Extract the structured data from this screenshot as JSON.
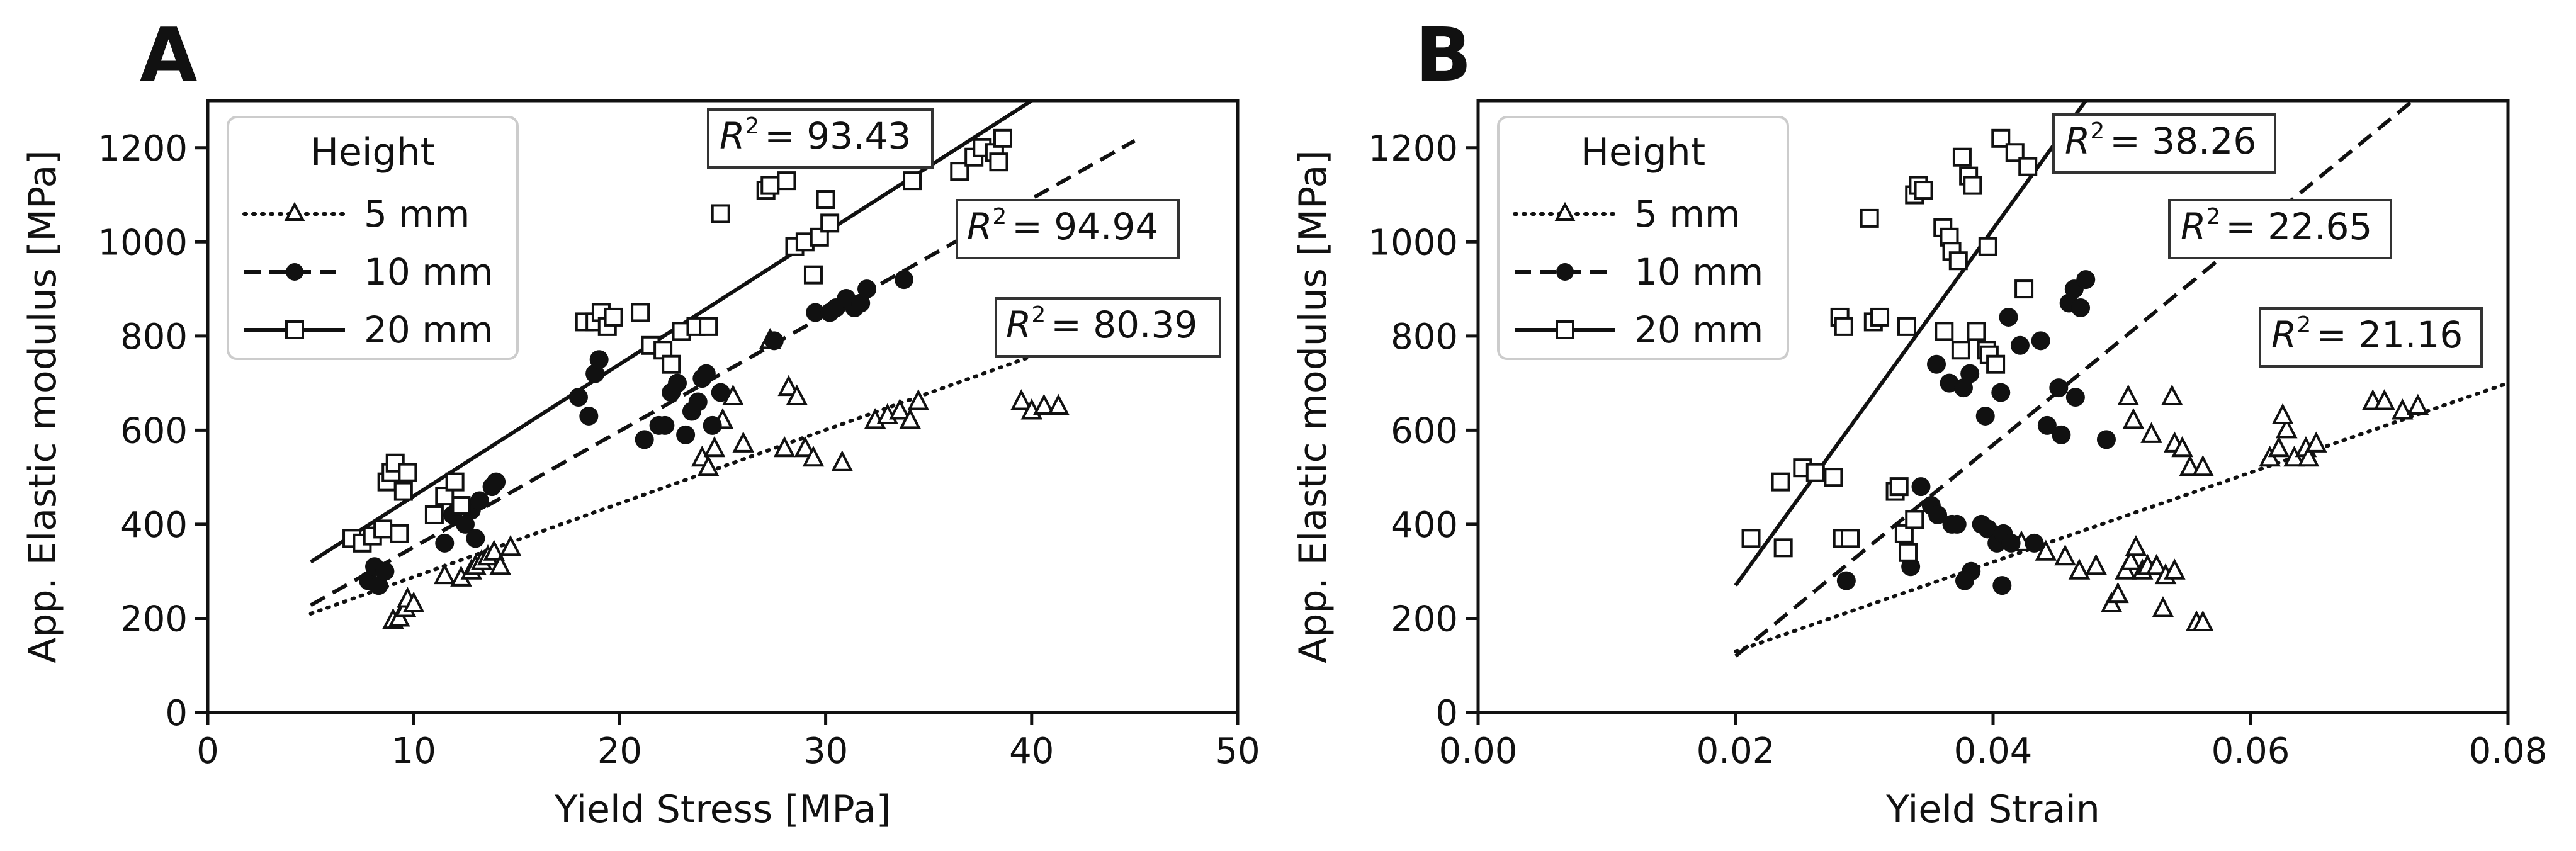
{
  "chart_data": [
    {
      "type": "scatter",
      "panel_label": "A",
      "xlabel": "Yield Stress [MPa]",
      "ylabel": "App. Elastic modulus [MPa]",
      "xlim": [
        0,
        50
      ],
      "ylim": [
        0,
        1300
      ],
      "xticks": [
        0,
        10,
        20,
        30,
        40,
        50
      ],
      "yticks": [
        0,
        200,
        400,
        600,
        800,
        1000,
        1200
      ],
      "grid": false,
      "legend": {
        "title": "Height",
        "position": "top-left",
        "entries": [
          {
            "label": "5 mm",
            "line": "dotted",
            "marker": "triangle-open"
          },
          {
            "label": "10 mm",
            "line": "dashed",
            "marker": "circle-filled"
          },
          {
            "label": "20 mm",
            "line": "solid",
            "marker": "square-open"
          }
        ]
      },
      "series": [
        {
          "name": "5 mm",
          "marker": "triangle-open",
          "points": [
            [
              9,
              195
            ],
            [
              9.3,
              200
            ],
            [
              9.6,
              220
            ],
            [
              9.7,
              240
            ],
            [
              10,
              230
            ],
            [
              11.5,
              290
            ],
            [
              12.3,
              285
            ],
            [
              12.8,
              300
            ],
            [
              13,
              310
            ],
            [
              13.3,
              320
            ],
            [
              13.6,
              330
            ],
            [
              13.9,
              340
            ],
            [
              14.2,
              310
            ],
            [
              14.7,
              350
            ],
            [
              24,
              540
            ],
            [
              24.3,
              520
            ],
            [
              24.6,
              560
            ],
            [
              25,
              620
            ],
            [
              25.5,
              670
            ],
            [
              26,
              570
            ],
            [
              27.3,
              790
            ],
            [
              28,
              560
            ],
            [
              28.2,
              690
            ],
            [
              28.6,
              670
            ],
            [
              29,
              560
            ],
            [
              29.4,
              540
            ],
            [
              30.8,
              530
            ],
            [
              32.4,
              620
            ],
            [
              33,
              630
            ],
            [
              33.6,
              640
            ],
            [
              34.1,
              620
            ],
            [
              34.5,
              660
            ],
            [
              39.5,
              660
            ],
            [
              40,
              640
            ],
            [
              40.6,
              650
            ],
            [
              41.3,
              650
            ]
          ]
        },
        {
          "name": "10 mm",
          "marker": "circle-filled",
          "points": [
            [
              7.8,
              280
            ],
            [
              8.1,
              310
            ],
            [
              8.3,
              270
            ],
            [
              8.6,
              300
            ],
            [
              11.5,
              360
            ],
            [
              11.9,
              420
            ],
            [
              12.2,
              440
            ],
            [
              12.5,
              400
            ],
            [
              12.8,
              430
            ],
            [
              13,
              370
            ],
            [
              13.2,
              450
            ],
            [
              13.8,
              480
            ],
            [
              14,
              490
            ],
            [
              18,
              670
            ],
            [
              18.5,
              630
            ],
            [
              18.8,
              720
            ],
            [
              19,
              750
            ],
            [
              21.2,
              580
            ],
            [
              21.9,
              610
            ],
            [
              22.2,
              610
            ],
            [
              22.5,
              680
            ],
            [
              22.8,
              700
            ],
            [
              23.2,
              590
            ],
            [
              23.5,
              640
            ],
            [
              23.8,
              660
            ],
            [
              24,
              710
            ],
            [
              24.2,
              720
            ],
            [
              24.5,
              610
            ],
            [
              24.9,
              680
            ],
            [
              27.5,
              790
            ],
            [
              29.5,
              850
            ],
            [
              30.2,
              850
            ],
            [
              30.5,
              860
            ],
            [
              31,
              880
            ],
            [
              31.4,
              860
            ],
            [
              31.7,
              870
            ],
            [
              32,
              900
            ],
            [
              33.8,
              920
            ]
          ]
        },
        {
          "name": "20 mm",
          "marker": "square-open",
          "points": [
            [
              7,
              370
            ],
            [
              7.5,
              360
            ],
            [
              8,
              375
            ],
            [
              8.5,
              390
            ],
            [
              8.7,
              490
            ],
            [
              8.9,
              510
            ],
            [
              9.1,
              530
            ],
            [
              9.3,
              380
            ],
            [
              9.5,
              470
            ],
            [
              9.7,
              510
            ],
            [
              11,
              420
            ],
            [
              11.5,
              460
            ],
            [
              12,
              490
            ],
            [
              12.3,
              440
            ],
            [
              18.3,
              830
            ],
            [
              18.8,
              830
            ],
            [
              19.1,
              850
            ],
            [
              19.4,
              820
            ],
            [
              19.7,
              840
            ],
            [
              21,
              850
            ],
            [
              21.5,
              780
            ],
            [
              22.1,
              770
            ],
            [
              22.5,
              740
            ],
            [
              23,
              810
            ],
            [
              23.7,
              820
            ],
            [
              24.3,
              820
            ],
            [
              24.9,
              1060
            ],
            [
              27.1,
              1110
            ],
            [
              27.3,
              1120
            ],
            [
              28.1,
              1130
            ],
            [
              28.5,
              990
            ],
            [
              29,
              1000
            ],
            [
              29.4,
              930
            ],
            [
              29.7,
              1010
            ],
            [
              30,
              1090
            ],
            [
              30.2,
              1040
            ],
            [
              34.2,
              1130
            ],
            [
              36.5,
              1150
            ],
            [
              37.2,
              1180
            ],
            [
              37.6,
              1200
            ],
            [
              38.2,
              1190
            ],
            [
              38.4,
              1170
            ],
            [
              38.6,
              1220
            ]
          ]
        }
      ],
      "fits": [
        {
          "series": "5 mm",
          "style": "dotted",
          "x": [
            5,
            45
          ],
          "y": [
            210,
            835
          ],
          "r2_label": "= 80.39"
        },
        {
          "series": "10 mm",
          "style": "dashed",
          "x": [
            5,
            45
          ],
          "y": [
            228,
            1215
          ],
          "r2_label": "= 94.94"
        },
        {
          "series": "20 mm",
          "style": "solid",
          "x": [
            5,
            40
          ],
          "y": [
            320,
            1300
          ],
          "r2_label": "= 93.43"
        }
      ]
    },
    {
      "type": "scatter",
      "panel_label": "B",
      "xlabel": "Yield Strain",
      "ylabel": "App. Elastic modulus [MPa]",
      "xlim": [
        0,
        0.08
      ],
      "ylim": [
        0,
        1300
      ],
      "xticks": [
        "0.00",
        "0.02",
        "0.04",
        "0.06",
        "0.08"
      ],
      "yticks": [
        0,
        200,
        400,
        600,
        800,
        1000,
        1200
      ],
      "grid": false,
      "legend": {
        "title": "Height",
        "position": "top-left",
        "entries": [
          {
            "label": "5 mm",
            "line": "dotted",
            "marker": "triangle-open"
          },
          {
            "label": "10 mm",
            "line": "dashed",
            "marker": "circle-filled"
          },
          {
            "label": "20 mm",
            "line": "solid",
            "marker": "square-open"
          }
        ]
      },
      "series": [
        {
          "name": "5 mm",
          "marker": "triangle-open",
          "points": [
            [
              0.0422,
              360
            ],
            [
              0.0441,
              340
            ],
            [
              0.0456,
              330
            ],
            [
              0.0467,
              300
            ],
            [
              0.048,
              310
            ],
            [
              0.0492,
              230
            ],
            [
              0.0497,
              250
            ],
            [
              0.0503,
              300
            ],
            [
              0.0507,
              320
            ],
            [
              0.0511,
              350
            ],
            [
              0.0516,
              300
            ],
            [
              0.052,
              310
            ],
            [
              0.0527,
              310
            ],
            [
              0.0534,
              290
            ],
            [
              0.0541,
              300
            ],
            [
              0.0532,
              220
            ],
            [
              0.0558,
              190
            ],
            [
              0.0563,
              190
            ],
            [
              0.0505,
              670
            ],
            [
              0.0509,
              620
            ],
            [
              0.0523,
              590
            ],
            [
              0.0539,
              670
            ],
            [
              0.0541,
              570
            ],
            [
              0.0547,
              560
            ],
            [
              0.0553,
              520
            ],
            [
              0.0563,
              520
            ],
            [
              0.0615,
              540
            ],
            [
              0.0622,
              560
            ],
            [
              0.0628,
              600
            ],
            [
              0.0625,
              630
            ],
            [
              0.0634,
              540
            ],
            [
              0.0643,
              560
            ],
            [
              0.0645,
              540
            ],
            [
              0.0651,
              570
            ],
            [
              0.0695,
              660
            ],
            [
              0.0704,
              660
            ],
            [
              0.0718,
              640
            ],
            [
              0.073,
              650
            ]
          ]
        },
        {
          "name": "10 mm",
          "marker": "circle-filled",
          "points": [
            [
              0.0286,
              280
            ],
            [
              0.0336,
              310
            ],
            [
              0.0344,
              480
            ],
            [
              0.0352,
              440
            ],
            [
              0.0357,
              420
            ],
            [
              0.0368,
              400
            ],
            [
              0.0372,
              400
            ],
            [
              0.0383,
              300
            ],
            [
              0.0378,
              280
            ],
            [
              0.0391,
              400
            ],
            [
              0.0396,
              390
            ],
            [
              0.0403,
              360
            ],
            [
              0.0408,
              380
            ],
            [
              0.0414,
              360
            ],
            [
              0.0407,
              270
            ],
            [
              0.0432,
              360
            ],
            [
              0.0356,
              740
            ],
            [
              0.0366,
              700
            ],
            [
              0.0377,
              690
            ],
            [
              0.0382,
              720
            ],
            [
              0.0394,
              630
            ],
            [
              0.0406,
              680
            ],
            [
              0.0412,
              840
            ],
            [
              0.0421,
              780
            ],
            [
              0.0437,
              790
            ],
            [
              0.0442,
              610
            ],
            [
              0.0451,
              690
            ],
            [
              0.0453,
              590
            ],
            [
              0.0464,
              670
            ],
            [
              0.0459,
              870
            ],
            [
              0.0463,
              900
            ],
            [
              0.0472,
              920
            ],
            [
              0.0468,
              860
            ],
            [
              0.0488,
              580
            ]
          ]
        },
        {
          "name": "20 mm",
          "marker": "square-open",
          "points": [
            [
              0.0212,
              370
            ],
            [
              0.0235,
              490
            ],
            [
              0.0237,
              350
            ],
            [
              0.0252,
              520
            ],
            [
              0.0262,
              510
            ],
            [
              0.0276,
              500
            ],
            [
              0.0281,
              840
            ],
            [
              0.0284,
              820
            ],
            [
              0.0283,
              370
            ],
            [
              0.0289,
              370
            ],
            [
              0.0304,
              1050
            ],
            [
              0.0307,
              830
            ],
            [
              0.0312,
              840
            ],
            [
              0.0324,
              470
            ],
            [
              0.0327,
              480
            ],
            [
              0.0331,
              380
            ],
            [
              0.0334,
              340
            ],
            [
              0.0339,
              410
            ],
            [
              0.0339,
              1100
            ],
            [
              0.0342,
              1120
            ],
            [
              0.0346,
              1110
            ],
            [
              0.0361,
              1030
            ],
            [
              0.0366,
              1010
            ],
            [
              0.0368,
              980
            ],
            [
              0.0373,
              960
            ],
            [
              0.0376,
              1180
            ],
            [
              0.0381,
              1140
            ],
            [
              0.0384,
              1120
            ],
            [
              0.0387,
              810
            ],
            [
              0.0395,
              770
            ],
            [
              0.0397,
              760
            ],
            [
              0.0402,
              740
            ],
            [
              0.0396,
              990
            ],
            [
              0.0406,
              1220
            ],
            [
              0.0417,
              1190
            ],
            [
              0.0427,
              1160
            ],
            [
              0.0424,
              900
            ],
            [
              0.0333,
              820
            ],
            [
              0.0362,
              810
            ],
            [
              0.0375,
              770
            ]
          ]
        }
      ],
      "fits": [
        {
          "series": "5 mm",
          "style": "dotted",
          "x": [
            0.02,
            0.08
          ],
          "y": [
            130,
            700
          ],
          "r2_label": "= 21.16"
        },
        {
          "series": "10 mm",
          "style": "dashed",
          "x": [
            0.02,
            0.0726
          ],
          "y": [
            120,
            1300
          ],
          "r2_label": "= 22.65"
        },
        {
          "series": "20 mm",
          "style": "solid",
          "x": [
            0.02,
            0.0472
          ],
          "y": [
            270,
            1300
          ],
          "r2_label": "= 38.26"
        }
      ]
    }
  ]
}
